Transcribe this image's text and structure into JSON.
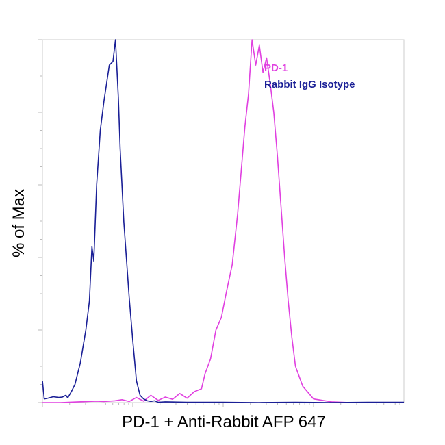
{
  "chart_data": {
    "type": "line",
    "title": "",
    "xlabel": "PD-1 + Anti-Rabbit AFP 647",
    "ylabel": "% of Max",
    "x_scale": "log",
    "xlim": [
      0,
      100
    ],
    "ylim": [
      0,
      100
    ],
    "legend_position": "top-right",
    "colors": {
      "pd1": "#e040e0",
      "isotype": "#1a1f96"
    },
    "series": [
      {
        "name": "PD-1",
        "color": "#e040e0",
        "x": [
          0,
          5,
          10,
          15,
          17,
          20,
          22,
          24,
          26,
          28,
          30,
          32,
          34,
          36,
          38,
          40,
          42,
          44,
          45,
          46.5,
          48,
          49.5,
          51,
          52.5,
          54,
          55,
          56,
          57,
          58,
          59,
          60,
          61,
          62,
          63,
          64,
          65,
          66,
          67,
          68,
          69,
          70,
          72,
          75,
          80,
          85,
          90,
          95,
          100
        ],
        "y": [
          0,
          0,
          0.2,
          0.4,
          0.3,
          0.5,
          0.8,
          0.3,
          1.4,
          0.4,
          2.0,
          0.6,
          1.5,
          0.9,
          2.5,
          1.2,
          3.0,
          3.8,
          8.0,
          12.0,
          20.0,
          23.5,
          31.0,
          38.0,
          52.0,
          64.0,
          76.0,
          85.0,
          100.0,
          93.0,
          98.5,
          91.0,
          95.0,
          88.0,
          80.0,
          68.0,
          54.0,
          40.0,
          28.0,
          18.0,
          10.0,
          4.5,
          1.0,
          0.2,
          0,
          0,
          0,
          0
        ]
      },
      {
        "name": "Rabbit IgG Isotype",
        "color": "#1a1f96",
        "x": [
          0,
          0.5,
          1.5,
          3,
          4.5,
          5.5,
          6.5,
          7,
          8,
          9,
          10.5,
          12,
          13,
          13.7,
          14.2,
          15,
          16,
          17,
          18.5,
          19.5,
          20.2,
          21,
          21.5,
          22.5,
          24,
          25,
          26,
          27,
          28,
          29,
          30,
          31,
          32,
          34,
          40,
          50,
          60,
          70,
          80,
          90,
          100
        ],
        "y": [
          6.0,
          1.0,
          1.2,
          1.6,
          1.4,
          1.5,
          2.0,
          1.3,
          3.0,
          5.0,
          11.0,
          20.0,
          28.0,
          43.0,
          39.0,
          60.0,
          75.0,
          83.0,
          93.0,
          94.0,
          100.0,
          84.0,
          70.0,
          50.0,
          29.0,
          17.0,
          6.0,
          2.0,
          1.0,
          0.5,
          0.3,
          0.5,
          0.1,
          0.2,
          0.1,
          0.1,
          0,
          0.1,
          0,
          0.1,
          0.1
        ]
      }
    ]
  }
}
